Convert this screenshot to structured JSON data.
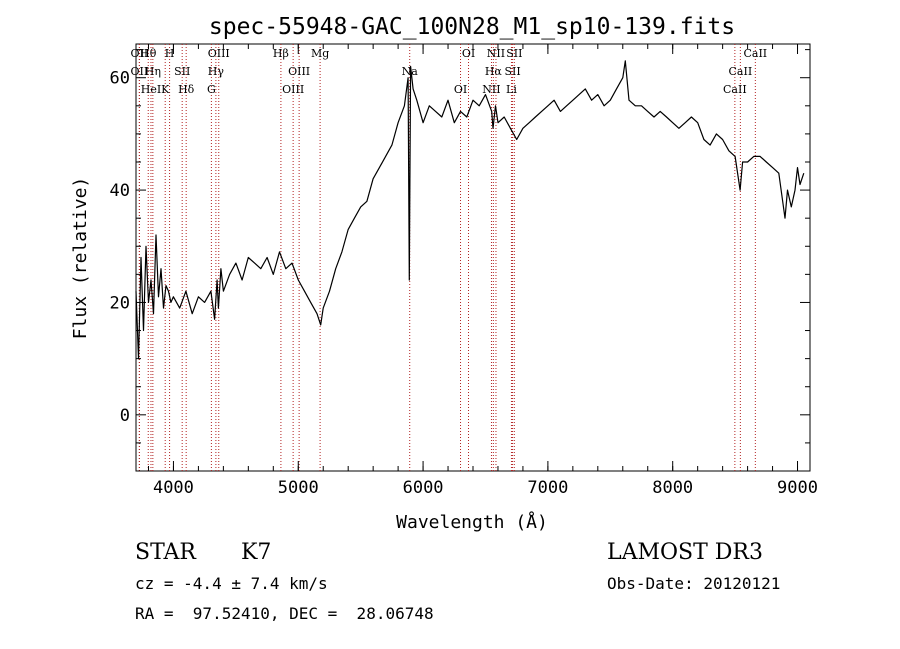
{
  "chart_data": {
    "type": "line",
    "title": "spec-55948-GAC_100N28_M1_sp10-139.fits",
    "xlabel": "Wavelength (Å)",
    "ylabel": "Flux (relative)",
    "xlim": [
      3700,
      9100
    ],
    "ylim": [
      -10,
      66
    ],
    "x_ticks": [
      4000,
      5000,
      6000,
      7000,
      8000,
      9000
    ],
    "y_ticks": [
      0,
      20,
      40,
      60
    ],
    "grid": false,
    "series": [
      {
        "x": [
          3700,
          3720,
          3740,
          3760,
          3780,
          3800,
          3820,
          3840,
          3860,
          3880,
          3900,
          3920,
          3940,
          3960,
          3980,
          4000,
          4050,
          4100,
          4150,
          4200,
          4250,
          4300,
          4330,
          4350,
          4360,
          4380,
          4400,
          4450,
          4500,
          4550,
          4600,
          4650,
          4700,
          4750,
          4800,
          4850,
          4900,
          4950,
          5000,
          5050,
          5100,
          5150,
          5180,
          5200,
          5250,
          5300,
          5350,
          5400,
          5450,
          5500,
          5550,
          5600,
          5650,
          5700,
          5750,
          5800,
          5850,
          5880,
          5890,
          5900,
          5920,
          5950,
          6000,
          6050,
          6100,
          6150,
          6200,
          6250,
          6300,
          6350,
          6400,
          6450,
          6500,
          6550,
          6560,
          6580,
          6600,
          6650,
          6700,
          6750,
          6800,
          6850,
          6900,
          6950,
          7000,
          7050,
          7100,
          7150,
          7200,
          7250,
          7300,
          7350,
          7400,
          7450,
          7500,
          7550,
          7600,
          7620,
          7650,
          7700,
          7750,
          7800,
          7850,
          7900,
          7950,
          8000,
          8050,
          8100,
          8150,
          8200,
          8250,
          8300,
          8350,
          8400,
          8450,
          8500,
          8540,
          8560,
          8600,
          8650,
          8700,
          8750,
          8800,
          8850,
          8900,
          8920,
          8950,
          8980,
          9000,
          9020,
          9050
        ],
        "y": [
          22,
          10,
          28,
          15,
          30,
          20,
          24,
          18,
          32,
          21,
          26,
          19,
          23,
          22,
          20,
          21,
          19,
          22,
          18,
          21,
          20,
          22,
          17,
          24,
          19,
          26,
          22,
          25,
          27,
          24,
          28,
          27,
          26,
          28,
          25,
          29,
          26,
          27,
          24,
          22,
          20,
          18,
          16,
          19,
          22,
          26,
          29,
          33,
          35,
          37,
          38,
          42,
          44,
          46,
          48,
          52,
          55,
          60,
          24,
          62,
          58,
          56,
          52,
          55,
          54,
          53,
          56,
          52,
          54,
          53,
          56,
          55,
          57,
          54,
          51,
          55,
          52,
          53,
          51,
          49,
          51,
          52,
          53,
          54,
          55,
          56,
          54,
          55,
          56,
          57,
          58,
          56,
          57,
          55,
          56,
          58,
          60,
          63,
          56,
          55,
          55,
          54,
          53,
          54,
          53,
          52,
          51,
          52,
          53,
          52,
          49,
          48,
          50,
          49,
          47,
          46,
          40,
          45,
          45,
          46,
          46,
          45,
          44,
          43,
          35,
          40,
          37,
          40,
          44,
          41,
          43
        ]
      }
    ],
    "annotations": [
      {
        "label": "Hθ",
        "x": 3798
      },
      {
        "label": "OII",
        "x": 3727
      },
      {
        "label": "HeI",
        "x": 3820
      },
      {
        "label": "OII",
        "x": 3727
      },
      {
        "label": "Hη",
        "x": 3835
      },
      {
        "label": "K",
        "x": 3934
      },
      {
        "label": "H",
        "x": 3969
      },
      {
        "label": "SII",
        "x": 4070
      },
      {
        "label": "Hδ",
        "x": 4102
      },
      {
        "label": "OIII",
        "x": 4363
      },
      {
        "label": "Hγ",
        "x": 4340
      },
      {
        "label": "G",
        "x": 4304
      },
      {
        "label": "Hβ",
        "x": 4861
      },
      {
        "label": "OIII",
        "x": 5007
      },
      {
        "label": "OIII",
        "x": 4959
      },
      {
        "label": "Mg",
        "x": 5175
      },
      {
        "label": "Na",
        "x": 5893
      },
      {
        "label": "OI",
        "x": 6300
      },
      {
        "label": "OI",
        "x": 6364
      },
      {
        "label": "Hα",
        "x": 6563
      },
      {
        "label": "NII",
        "x": 6548
      },
      {
        "label": "NII",
        "x": 6584
      },
      {
        "label": "SII",
        "x": 6717
      },
      {
        "label": "Li",
        "x": 6708
      },
      {
        "label": "SII",
        "x": 6731
      },
      {
        "label": "CaII",
        "x": 8542
      },
      {
        "label": "CaII",
        "x": 8498
      },
      {
        "label": "CaII",
        "x": 8662
      }
    ]
  },
  "info": {
    "class_label": "STAR",
    "subclass": "K7",
    "survey": "LAMOST DR3",
    "cz_text": "cz = -4.4 ± 7.4 km/s",
    "obsdate_text": "Obs-Date: 20120121",
    "radec_text": "RA =  97.52410, DEC =  28.06748"
  },
  "colors": {
    "line": "#000000",
    "marker": "#b22222"
  }
}
